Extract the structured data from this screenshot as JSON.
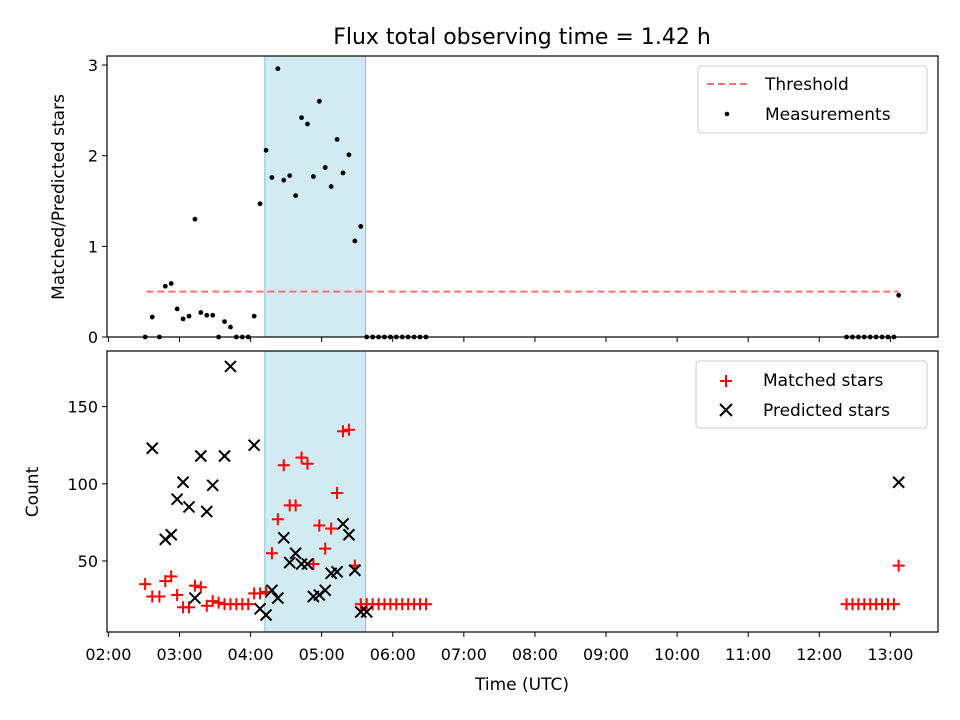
{
  "chart_data": [
    {
      "type": "scatter",
      "title": "Flux total observing time = 1.42 h",
      "xlabel": "",
      "ylabel": "Matched/Predicted stars",
      "xlim_hours": [
        1.98,
        13.67
      ],
      "ylim": [
        0,
        3.1
      ],
      "yticks": [
        0,
        1,
        2,
        3
      ],
      "shaded_interval": [
        "04:12",
        "05:37"
      ],
      "shade_color": "#add8e6",
      "legend_position": "top-right",
      "series": [
        {
          "name": "Threshold",
          "kind": "dashed-line",
          "color": "#ff6f6f",
          "x": [
            "02:32",
            "13:07"
          ],
          "y": [
            0.5,
            0.5
          ]
        },
        {
          "name": "Measurements",
          "kind": "points",
          "color": "#000000",
          "x": [
            "02:31",
            "02:37",
            "02:43",
            "02:48",
            "02:53",
            "02:58",
            "03:03",
            "03:08",
            "03:13",
            "03:18",
            "03:23",
            "03:28",
            "03:33",
            "03:38",
            "03:43",
            "03:48",
            "03:53",
            "03:58",
            "04:03",
            "04:08",
            "04:13",
            "04:18",
            "04:23",
            "04:28",
            "04:33",
            "04:38",
            "04:43",
            "04:48",
            "04:53",
            "04:58",
            "05:03",
            "05:08",
            "05:13",
            "05:18",
            "05:23",
            "05:28",
            "05:33",
            "05:38",
            "05:43",
            "05:48",
            "05:53",
            "05:58",
            "06:03",
            "06:08",
            "06:13",
            "06:18",
            "06:23",
            "06:28",
            "12:23",
            "12:28",
            "12:33",
            "12:38",
            "12:43",
            "12:48",
            "12:53",
            "12:58",
            "13:03",
            "13:07"
          ],
          "y": [
            0.0,
            0.22,
            0.0,
            0.56,
            0.59,
            0.31,
            0.2,
            0.23,
            1.3,
            0.27,
            0.24,
            0.24,
            0.0,
            0.17,
            0.11,
            0.0,
            0.0,
            0.0,
            0.23,
            1.47,
            2.06,
            1.76,
            2.96,
            1.73,
            1.78,
            1.56,
            2.42,
            2.35,
            1.77,
            2.6,
            1.87,
            1.66,
            2.18,
            1.81,
            2.01,
            1.06,
            1.22,
            0.0,
            0.0,
            0.0,
            0.0,
            0.0,
            0.0,
            0.0,
            0.0,
            0.0,
            0.0,
            0.0,
            0.0,
            0.0,
            0.0,
            0.0,
            0.0,
            0.0,
            0.0,
            0.0,
            0.0,
            0.46
          ]
        }
      ]
    },
    {
      "type": "scatter",
      "title": "",
      "xlabel": "Time (UTC)",
      "ylabel": "Count",
      "xlim_hours": [
        1.98,
        13.67
      ],
      "ylim": [
        4,
        186
      ],
      "yticks": [
        50,
        100,
        150
      ],
      "xtick_labels": [
        "02:00",
        "03:00",
        "04:00",
        "05:00",
        "06:00",
        "07:00",
        "08:00",
        "09:00",
        "10:00",
        "11:00",
        "12:00",
        "13:00"
      ],
      "shaded_interval": [
        "04:12",
        "05:37"
      ],
      "shade_color": "#add8e6",
      "legend_position": "top-right",
      "series": [
        {
          "name": "Matched stars",
          "kind": "plus",
          "color": "#ff0000",
          "x": [
            "02:31",
            "02:37",
            "02:43",
            "02:48",
            "02:53",
            "02:58",
            "03:03",
            "03:08",
            "03:13",
            "03:18",
            "03:23",
            "03:28",
            "03:33",
            "03:38",
            "03:43",
            "03:48",
            "03:53",
            "03:58",
            "04:03",
            "04:08",
            "04:13",
            "04:18",
            "04:23",
            "04:28",
            "04:33",
            "04:38",
            "04:43",
            "04:48",
            "04:53",
            "04:58",
            "05:03",
            "05:08",
            "05:13",
            "05:18",
            "05:23",
            "05:28",
            "05:33",
            "05:38",
            "05:43",
            "05:48",
            "05:53",
            "05:58",
            "06:03",
            "06:08",
            "06:13",
            "06:18",
            "06:23",
            "06:28",
            "12:23",
            "12:28",
            "12:33",
            "12:38",
            "12:43",
            "12:48",
            "12:53",
            "12:58",
            "13:03",
            "13:07"
          ],
          "y": [
            35,
            27,
            27,
            37,
            40,
            28,
            20,
            20,
            34,
            33,
            21,
            24,
            23,
            22,
            22,
            22,
            22,
            22,
            29,
            29,
            30,
            55,
            77,
            112,
            86,
            86,
            117,
            113,
            48,
            73,
            58,
            71,
            94,
            134,
            135,
            47,
            22,
            22,
            22,
            22,
            22,
            22,
            22,
            22,
            22,
            22,
            22,
            22,
            22,
            22,
            22,
            22,
            22,
            22,
            22,
            22,
            22,
            47
          ]
        },
        {
          "name": "Predicted stars",
          "kind": "cross",
          "color": "#000000",
          "x": [
            "02:37",
            "02:48",
            "02:53",
            "02:58",
            "03:03",
            "03:08",
            "03:13",
            "03:18",
            "03:23",
            "03:28",
            "03:38",
            "03:43",
            "04:03",
            "04:08",
            "04:13",
            "04:18",
            "04:23",
            "04:28",
            "04:33",
            "04:38",
            "04:43",
            "04:48",
            "04:53",
            "04:58",
            "05:03",
            "05:08",
            "05:13",
            "05:18",
            "05:23",
            "05:28",
            "05:33",
            "05:38",
            "13:07"
          ],
          "y": [
            123,
            64,
            67,
            90,
            101,
            85,
            26,
            118,
            82,
            99,
            118,
            176,
            125,
            19,
            15,
            31,
            26,
            65,
            49,
            55,
            48,
            48,
            27,
            28,
            31,
            42,
            43,
            74,
            67,
            44,
            17,
            17,
            101
          ]
        }
      ]
    }
  ]
}
